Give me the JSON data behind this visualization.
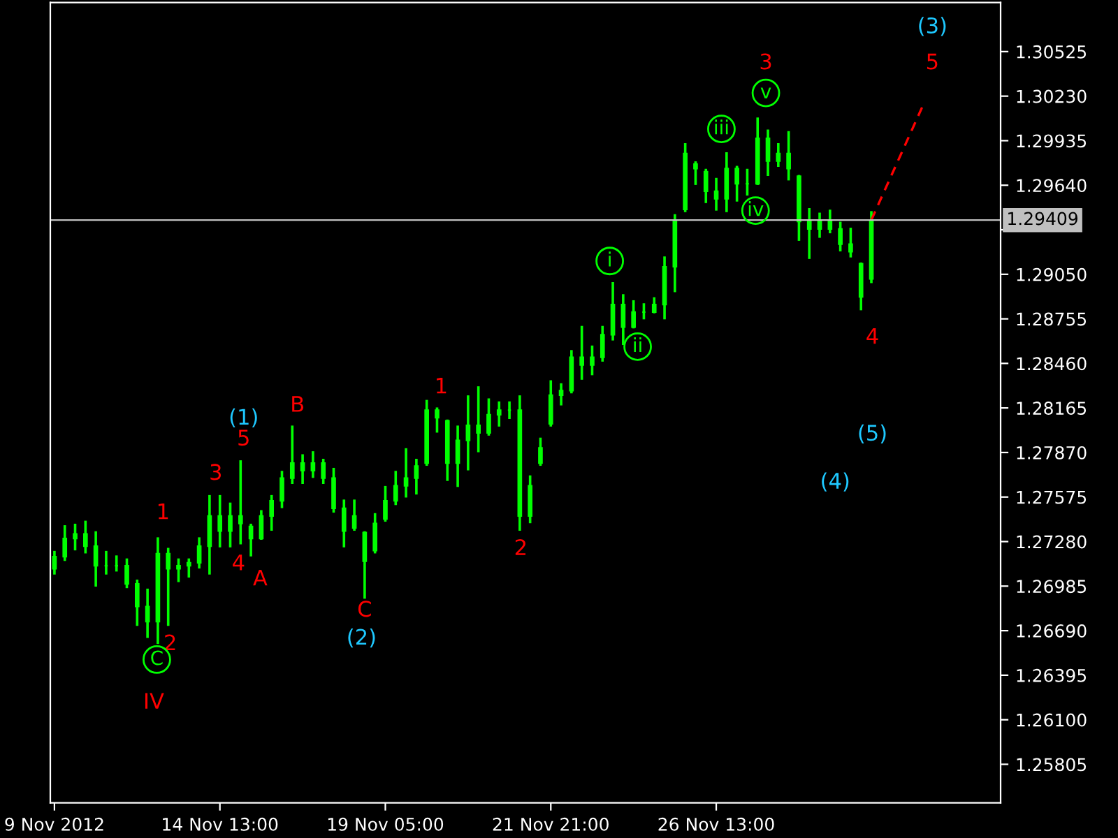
{
  "chart_data": {
    "type": "candlestick",
    "categories": [
      "9 Nov 2012",
      null,
      null,
      null,
      null,
      null,
      null,
      null,
      null,
      null,
      null,
      null,
      null,
      null,
      null,
      null,
      "14 Nov 13:00",
      null,
      null,
      null,
      null,
      null,
      null,
      null,
      null,
      null,
      null,
      null,
      null,
      null,
      null,
      null,
      "19 Nov 05:00",
      null,
      null,
      null,
      null,
      null,
      null,
      null,
      null,
      null,
      null,
      null,
      null,
      null,
      null,
      null,
      "21 Nov 21:00",
      null,
      null,
      null,
      null,
      null,
      null,
      null,
      null,
      null,
      null,
      null,
      null,
      null,
      null,
      null,
      "26 Nov 13:00",
      null,
      null,
      null,
      null,
      null,
      null,
      null,
      null,
      null,
      null,
      null,
      null,
      null,
      null,
      null,
      null,
      null,
      null,
      null,
      null,
      null,
      null,
      null,
      null,
      null,
      null,
      null
    ],
    "ohlc": [
      [
        1.271,
        1.2721,
        1.2707,
        1.2718
      ],
      [
        1.2718,
        1.2738,
        1.2716,
        1.273
      ],
      [
        1.273,
        1.2739,
        1.2723,
        1.2733
      ],
      [
        1.2733,
        1.2741,
        1.2721,
        1.2725
      ],
      [
        1.2725,
        1.2734,
        1.2699,
        1.2712
      ],
      [
        1.2712,
        1.2721,
        1.2707,
        1.2712
      ],
      [
        1.2712,
        1.2718,
        1.2709,
        1.2712
      ],
      [
        1.2712,
        1.2716,
        1.2698,
        1.27
      ],
      [
        1.27,
        1.2702,
        1.2673,
        1.2685
      ],
      [
        1.2685,
        1.2696,
        1.2665,
        1.2675
      ],
      [
        1.2675,
        1.273,
        1.2661,
        1.272
      ],
      [
        1.272,
        1.2723,
        1.2673,
        1.271
      ],
      [
        1.271,
        1.2716,
        1.2702,
        1.2712
      ],
      [
        1.2712,
        1.2716,
        1.2705,
        1.2714
      ],
      [
        1.2714,
        1.273,
        1.2711,
        1.2725
      ],
      [
        1.2725,
        1.2758,
        1.2707,
        1.2745
      ],
      [
        1.2745,
        1.2758,
        1.2725,
        1.2735
      ],
      [
        1.2735,
        1.2753,
        1.2725,
        1.2745
      ],
      [
        1.2745,
        1.2781,
        1.2727,
        1.274
      ],
      [
        1.2738,
        1.2739,
        1.2719,
        1.273
      ],
      [
        1.273,
        1.2748,
        1.273,
        1.2745
      ],
      [
        1.2745,
        1.2758,
        1.2736,
        1.2755
      ],
      [
        1.2755,
        1.2774,
        1.2751,
        1.277
      ],
      [
        1.277,
        1.2804,
        1.2767,
        1.278
      ],
      [
        1.278,
        1.2785,
        1.2767,
        1.2775
      ],
      [
        1.2775,
        1.2787,
        1.2771,
        1.278
      ],
      [
        1.278,
        1.2782,
        1.2767,
        1.277
      ],
      [
        1.277,
        1.2776,
        1.2748,
        1.275
      ],
      [
        1.275,
        1.2755,
        1.2725,
        1.2735
      ],
      [
        1.2737,
        1.2755,
        1.2736,
        1.2745
      ],
      [
        1.2734,
        1.2734,
        1.2691,
        1.2715
      ],
      [
        1.2722,
        1.2746,
        1.2721,
        1.274
      ],
      [
        1.2743,
        1.2764,
        1.2742,
        1.2755
      ],
      [
        1.2755,
        1.2774,
        1.2753,
        1.2765
      ],
      [
        1.2765,
        1.2789,
        1.2758,
        1.277
      ],
      [
        1.277,
        1.2782,
        1.276,
        1.2778
      ],
      [
        1.278,
        1.2821,
        1.2779,
        1.2815
      ],
      [
        1.2815,
        1.2816,
        1.2801,
        1.281
      ],
      [
        1.2808,
        1.2808,
        1.2769,
        1.278
      ],
      [
        1.278,
        1.2804,
        1.2765,
        1.2795
      ],
      [
        1.2795,
        1.2824,
        1.2776,
        1.2805
      ],
      [
        1.2805,
        1.283,
        1.2788,
        1.28
      ],
      [
        1.28,
        1.2822,
        1.2799,
        1.2812
      ],
      [
        1.2812,
        1.282,
        1.2805,
        1.2815
      ],
      [
        1.2815,
        1.282,
        1.281,
        1.2815
      ],
      [
        1.2815,
        1.2824,
        1.2736,
        1.2745
      ],
      [
        1.2745,
        1.2771,
        1.2741,
        1.2765
      ],
      [
        1.278,
        1.2796,
        1.2779,
        1.279
      ],
      [
        1.2806,
        1.2834,
        1.2805,
        1.2825
      ],
      [
        1.2825,
        1.2832,
        1.2819,
        1.2828
      ],
      [
        1.2828,
        1.2854,
        1.2827,
        1.285
      ],
      [
        1.285,
        1.287,
        1.2836,
        1.2845
      ],
      [
        1.2845,
        1.2857,
        1.2839,
        1.285
      ],
      [
        1.285,
        1.287,
        1.2848,
        1.2865
      ],
      [
        1.2865,
        1.2899,
        1.2862,
        1.2885
      ],
      [
        1.2885,
        1.2891,
        1.2859,
        1.287
      ],
      [
        1.287,
        1.2887,
        1.287,
        1.288
      ],
      [
        1.288,
        1.2885,
        1.2876,
        1.288
      ],
      [
        1.288,
        1.2889,
        1.288,
        1.2885
      ],
      [
        1.2885,
        1.2916,
        1.2876,
        1.291
      ],
      [
        1.291,
        1.2944,
        1.2894,
        1.294
      ],
      [
        1.2948,
        1.2991,
        1.2947,
        1.2985
      ],
      [
        1.2978,
        1.2979,
        1.2965,
        1.2975
      ],
      [
        1.2973,
        1.2974,
        1.2953,
        1.296
      ],
      [
        1.296,
        1.2968,
        1.2948,
        1.2955
      ],
      [
        1.2955,
        1.2985,
        1.2947,
        1.2975
      ],
      [
        1.2975,
        1.2976,
        1.2954,
        1.2965
      ],
      [
        1.2965,
        1.2974,
        1.2958,
        1.2965
      ],
      [
        1.2965,
        1.3008,
        1.2965,
        1.2995
      ],
      [
        1.2995,
        1.3,
        1.2971,
        1.298
      ],
      [
        1.298,
        1.2991,
        1.2977,
        1.2985
      ],
      [
        1.2985,
        1.2999,
        1.2968,
        1.2975
      ],
      [
        1.297,
        1.297,
        1.2928,
        1.294
      ],
      [
        1.294,
        1.2948,
        1.2916,
        1.2935
      ],
      [
        1.2935,
        1.2945,
        1.293,
        1.294
      ],
      [
        1.294,
        1.2947,
        1.2933,
        1.2935
      ],
      [
        1.2935,
        1.2939,
        1.2921,
        1.2925
      ],
      [
        1.2925,
        1.2935,
        1.2917,
        1.292
      ],
      [
        1.2912,
        1.2912,
        1.2882,
        1.289
      ],
      [
        1.2902,
        1.2946,
        1.29,
        1.29409
      ],
      null,
      null,
      null,
      null,
      null,
      null,
      null,
      null,
      null,
      null,
      null,
      null
    ],
    "color": "#00ff00",
    "series": [
      {
        "type": "line",
        "values": [
          null,
          null,
          null,
          null,
          null,
          null,
          null,
          null,
          null,
          null,
          null,
          null,
          null,
          null,
          null,
          null,
          null,
          null,
          null,
          null,
          null,
          null,
          null,
          null,
          null,
          null,
          null,
          null,
          null,
          null,
          null,
          null,
          null,
          null,
          null,
          null,
          null,
          null,
          null,
          null,
          null,
          null,
          null,
          null,
          null,
          null,
          null,
          null,
          null,
          null,
          null,
          null,
          null,
          null,
          null,
          null,
          null,
          null,
          null,
          null,
          null,
          null,
          null,
          null,
          null,
          null,
          null,
          null,
          null,
          null,
          null,
          null,
          null,
          null,
          null,
          null,
          null,
          null,
          null,
          1.2941,
          null,
          null,
          null,
          null,
          1.3017,
          null,
          null,
          null,
          null,
          null,
          null,
          null
        ],
        "color": "#ff0000",
        "line_style": "dashed"
      }
    ],
    "ylim": [
      1.2555,
      1.3085
    ],
    "yticks": [
      {
        "value": 1.25805,
        "label": "1.25805"
      },
      {
        "value": 1.261,
        "label": "1.26100"
      },
      {
        "value": 1.26395,
        "label": "1.26395"
      },
      {
        "value": 1.2669,
        "label": "1.26690"
      },
      {
        "value": 1.26985,
        "label": "1.26985"
      },
      {
        "value": 1.2728,
        "label": "1.27280"
      },
      {
        "value": 1.27575,
        "label": "1.27575"
      },
      {
        "value": 1.2787,
        "label": "1.27870"
      },
      {
        "value": 1.28165,
        "label": "1.28165"
      },
      {
        "value": 1.2846,
        "label": "1.28460"
      },
      {
        "value": 1.28755,
        "label": "1.28755"
      },
      {
        "value": 1.2905,
        "label": "1.29050"
      },
      {
        "value": 1.29345,
        "label": null
      },
      {
        "value": 1.2964,
        "label": "1.29640"
      },
      {
        "value": 1.29935,
        "label": "1.29935"
      },
      {
        "value": 1.3023,
        "label": "1.30230"
      },
      {
        "value": 1.30525,
        "label": "1.30525"
      }
    ],
    "ref_lines": [
      {
        "axis": "y",
        "value": 1.29409,
        "label": "1.29409",
        "color": "#c0c0c0"
      }
    ],
    "annotations": [
      "IV",
      "2",
      "1",
      "3",
      "4",
      "5",
      "A",
      "B",
      "C",
      "1",
      "2",
      "3",
      "4",
      "5",
      "(1)",
      "(2)",
      "(3)",
      "(4)",
      "(5)",
      "C",
      "i",
      "ii",
      "iii",
      "iv",
      "v"
    ],
    "grid": false,
    "legend": false
  }
}
